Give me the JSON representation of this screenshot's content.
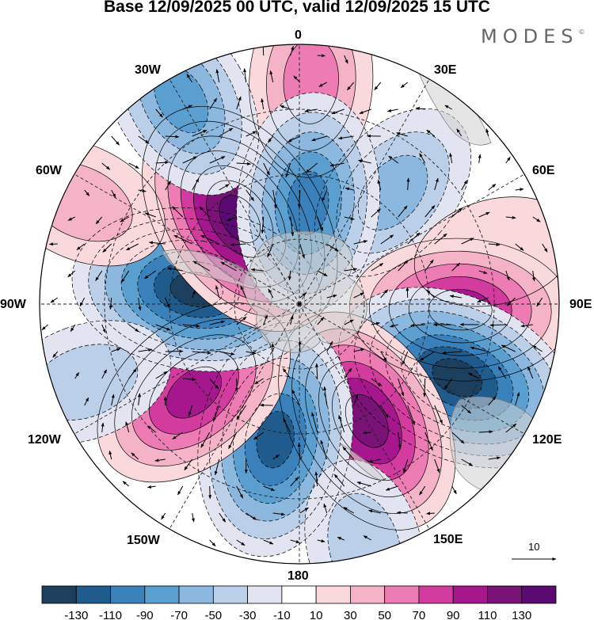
{
  "title": "Base 12/09/2025 00 UTC, valid 12/09/2025 15 UTC",
  "brand": "MODES",
  "brand_mark": "©",
  "meridian_labels": {
    "n0": "0",
    "e30": "30E",
    "e60": "60E",
    "e90": "90E",
    "e120": "120E",
    "e150": "150E",
    "s180": "180",
    "w150": "150W",
    "w120": "120W",
    "w90": "90W",
    "w60": "60W",
    "w30": "30W"
  },
  "vector_reference": "10",
  "colorbar": {
    "labels": [
      "-130",
      "-110",
      "-90",
      "-70",
      "-50",
      "-30",
      "-10",
      "10",
      "30",
      "50",
      "70",
      "90",
      "110",
      "130"
    ],
    "colors": [
      "#1c3f5e",
      "#1f5b8c",
      "#3a80bb",
      "#5a9fd0",
      "#8cb8df",
      "#bccfe9",
      "#e3e4f1",
      "#ffffff",
      "#f9d9dc",
      "#f4b3c6",
      "#ec7cb3",
      "#d23c9e",
      "#a6178d",
      "#7a1278",
      "#5a0a70"
    ]
  },
  "anomaly_centers": [
    {
      "lon": 3,
      "colat": 0.86,
      "value": 40
    },
    {
      "lon": 40,
      "colat": 0.56,
      "value": -45
    },
    {
      "lon": 75,
      "colat": 0.78,
      "value": 10
    },
    {
      "lon": 92,
      "colat": 0.62,
      "value": 85
    },
    {
      "lon": 115,
      "colat": 0.67,
      "value": -130
    },
    {
      "lon": 150,
      "colat": 0.52,
      "value": 110
    },
    {
      "lon": -170,
      "colat": 0.53,
      "value": -110
    },
    {
      "lon": -130,
      "colat": 0.53,
      "value": 80
    },
    {
      "lon": -82,
      "colat": 0.4,
      "value": -120
    },
    {
      "lon": -35,
      "colat": 0.4,
      "value": 125
    },
    {
      "lon": 5,
      "colat": 0.39,
      "value": -90
    },
    {
      "lon": -30,
      "colat": 0.91,
      "value": -70
    },
    {
      "lon": -65,
      "colat": 0.93,
      "value": 20
    },
    {
      "lon": -110,
      "colat": 0.88,
      "value": -20
    },
    {
      "lon": 165,
      "colat": 0.97,
      "value": -30
    }
  ]
}
